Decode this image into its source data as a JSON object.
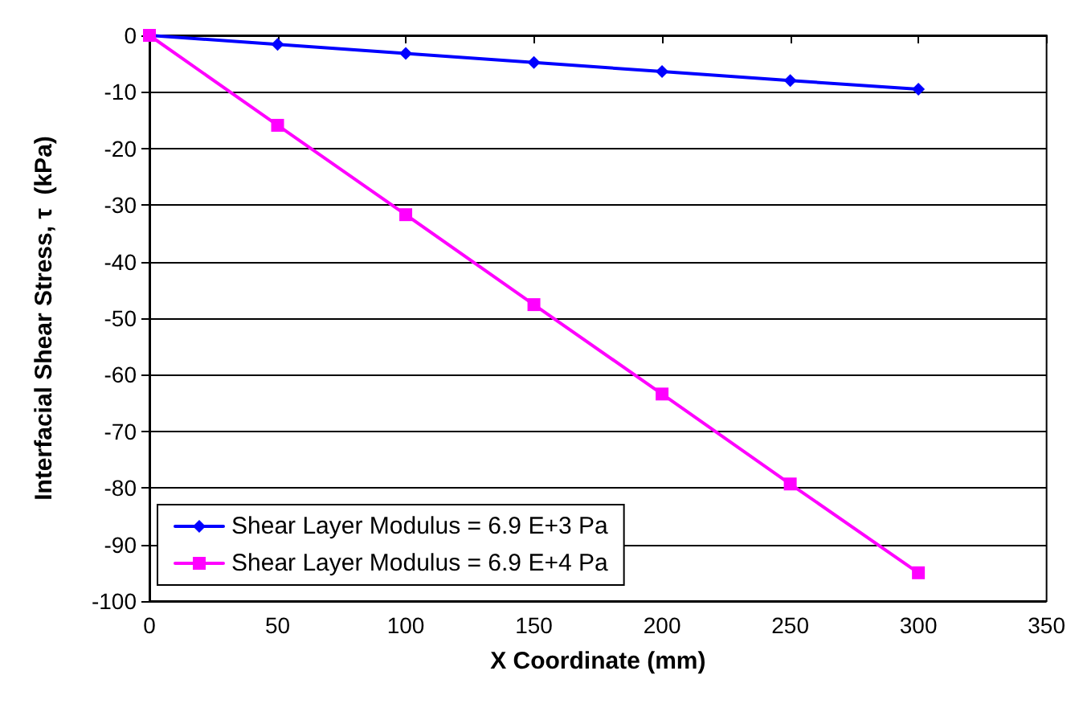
{
  "chart_data": {
    "type": "line",
    "xlabel": "X Coordinate (mm)",
    "ylabel": "Interfacial Shear Stress, τ  (kPa)",
    "x": [
      0,
      50,
      100,
      150,
      200,
      250,
      300
    ],
    "series": [
      {
        "name": "Shear Layer Modulus = 6.9 E+3 Pa",
        "color": "#0000ff",
        "marker": "diamond",
        "values": [
          0,
          -1.6,
          -3.2,
          -4.8,
          -6.4,
          -8.0,
          -9.5
        ]
      },
      {
        "name": "Shear Layer Modulus = 6.9 E+4 Pa",
        "color": "#ff00ff",
        "marker": "square",
        "values": [
          0,
          -15.9,
          -31.7,
          -47.6,
          -63.4,
          -79.3,
          -95.0
        ]
      }
    ],
    "xlim": [
      0,
      350
    ],
    "xticks": [
      0,
      50,
      100,
      150,
      200,
      250,
      300,
      350
    ],
    "ylim": [
      -100,
      0
    ],
    "yticks": [
      -100,
      -90,
      -80,
      -70,
      -60,
      -50,
      -40,
      -30,
      -20,
      -10,
      0
    ],
    "grid": "y",
    "legend": "bottom left",
    "line_style": "solid"
  }
}
